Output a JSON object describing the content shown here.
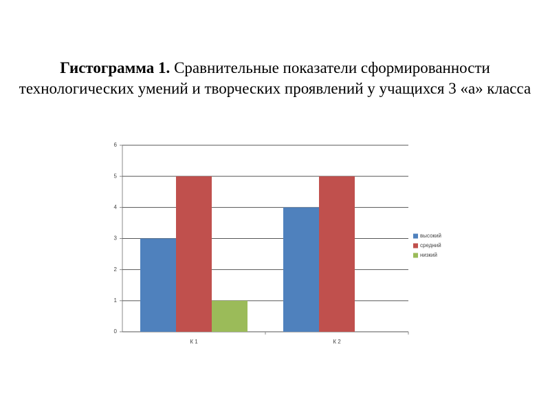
{
  "chart_data": {
    "type": "bar",
    "title_label": "Гистограмма 1.",
    "title": "Сравнительные показатели сформированности технологических умений и творческих проявлений у учащихся 3 «а» класса",
    "categories": [
      "К 1",
      "К 2"
    ],
    "series": [
      {
        "name": "высокий",
        "color": "#4f81bd",
        "values": [
          3,
          4
        ]
      },
      {
        "name": "средний",
        "color": "#c0504d",
        "values": [
          5,
          5
        ]
      },
      {
        "name": "низкий",
        "color": "#9bbb59",
        "values": [
          1,
          0
        ]
      }
    ],
    "ylim": [
      0,
      6
    ],
    "yticks": [
      0,
      1,
      2,
      3,
      4,
      5,
      6
    ],
    "grid": true,
    "legend": "right"
  }
}
